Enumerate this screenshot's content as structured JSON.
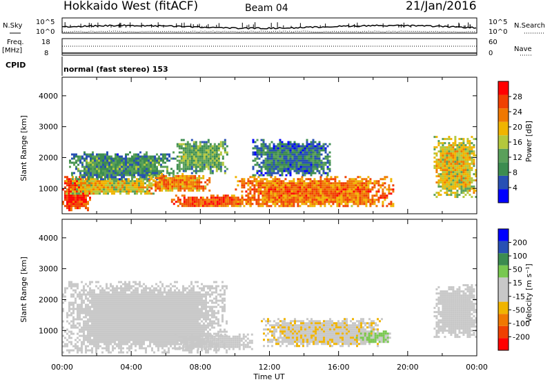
{
  "header": {
    "station": "Hokkaido West (fitACF)",
    "beam": "Beam 04",
    "date": "21/Jan/2016"
  },
  "status_panel": {
    "nsky_label": "N.Sky",
    "nsearch_label": "N.Search",
    "freq_label": "Freq.",
    "freq_unit": "[MHz]",
    "nave_label": "Nave",
    "cpid_label": "CPID",
    "cpid_text": "normal (fast stereo) 153",
    "noise_left_ticks": [
      "10^5",
      "10^0"
    ],
    "noise_right_ticks": [
      "10^5",
      "10^0"
    ],
    "freq_ticks": [
      "18",
      "8"
    ],
    "nave_ticks": [
      "60",
      "0"
    ]
  },
  "colors": {
    "power_scale": [
      "#0000ff",
      "#2850b4",
      "#3c8c50",
      "#5aa05a",
      "#b4c83c",
      "#f0b400",
      "#f07800",
      "#f04000",
      "#ff0000"
    ],
    "velocity_scale": [
      "#ff0000",
      "#f04000",
      "#f07800",
      "#f0b400",
      "#c8c8c8",
      "#c8c8c8",
      "#78c850",
      "#3c8c50",
      "#2850b4",
      "#0000ff"
    ]
  },
  "chart_data": [
    {
      "type": "heatmap",
      "name": "power",
      "xlabel": "",
      "ylabel": "Slant Range [km]",
      "yticks": [
        "1000",
        "2000",
        "3000",
        "4000"
      ],
      "ylim": [
        180,
        4600
      ],
      "xlim_hours": [
        0,
        24
      ],
      "colorbar": {
        "label": "Power [dB]",
        "ticks": [
          "4",
          "8",
          "12",
          "16",
          "20",
          "24",
          "28"
        ],
        "range": [
          0,
          32
        ]
      },
      "blobs": [
        {
          "t0": 0.0,
          "t1": 1.6,
          "r0": 300,
          "r1": 1400,
          "value": 26
        },
        {
          "t0": 0.2,
          "t1": 5.5,
          "r0": 800,
          "r1": 1400,
          "value": 16
        },
        {
          "t0": 0.4,
          "t1": 6.5,
          "r0": 1300,
          "r1": 2200,
          "value": 8
        },
        {
          "t0": 5.0,
          "t1": 8.5,
          "r0": 900,
          "r1": 1500,
          "value": 20
        },
        {
          "t0": 6.5,
          "t1": 9.5,
          "r0": 1500,
          "r1": 2600,
          "value": 10
        },
        {
          "t0": 6.3,
          "t1": 11.0,
          "r0": 400,
          "r1": 800,
          "value": 24
        },
        {
          "t0": 10.0,
          "t1": 19.2,
          "r0": 400,
          "r1": 1400,
          "value": 22
        },
        {
          "t0": 11.0,
          "t1": 15.5,
          "r0": 1400,
          "r1": 2600,
          "value": 6
        },
        {
          "t0": 21.5,
          "t1": 24.0,
          "r0": 700,
          "r1": 2700,
          "value": 16
        }
      ]
    },
    {
      "type": "heatmap",
      "name": "velocity",
      "xlabel": "Time UT",
      "ylabel": "Slant Range [km]",
      "yticks": [
        "1000",
        "2000",
        "3000",
        "4000"
      ],
      "ylim": [
        180,
        4600
      ],
      "xticks": [
        "00:00",
        "04:00",
        "08:00",
        "12:00",
        "16:00",
        "20:00",
        "00:00"
      ],
      "xlim_hours": [
        0,
        24
      ],
      "colorbar": {
        "label": "Velocity [m s⁻¹]",
        "ticks": [
          "-200",
          "-100",
          "-50",
          "-15",
          "15",
          "50",
          "100",
          "200"
        ],
        "range": [
          -250,
          250
        ]
      },
      "blobs": [
        {
          "t0": 0.0,
          "t1": 9.5,
          "r0": 300,
          "r1": 2600,
          "value": 0
        },
        {
          "t0": 6.5,
          "t1": 11.0,
          "r0": 400,
          "r1": 900,
          "value": 30
        },
        {
          "t0": 11.5,
          "t1": 18.5,
          "r0": 500,
          "r1": 1400,
          "value": -40
        },
        {
          "t0": 17.0,
          "t1": 19.0,
          "r0": 600,
          "r1": 1000,
          "value": 55
        },
        {
          "t0": 21.5,
          "t1": 24.0,
          "r0": 800,
          "r1": 2500,
          "value": 0
        }
      ]
    }
  ]
}
